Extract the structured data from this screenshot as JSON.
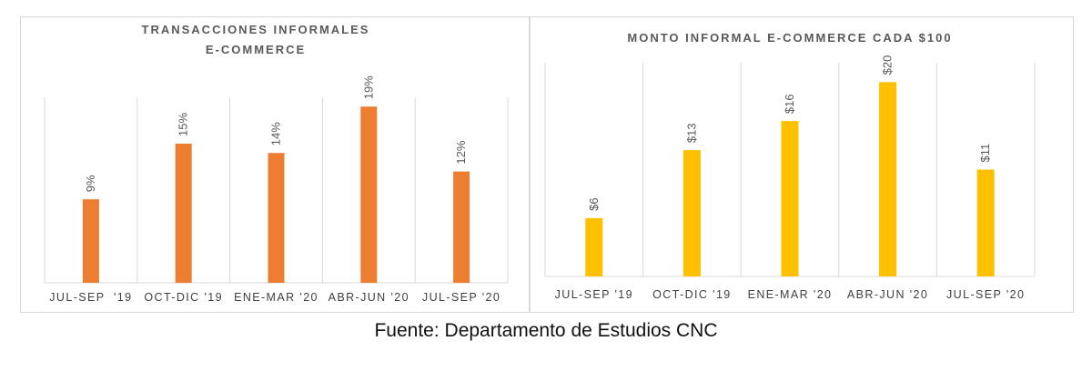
{
  "chart_data": [
    {
      "type": "bar",
      "title_lines": [
        "TRANSACCIONES  INFORMALES",
        "E-COMMERCE"
      ],
      "categories": [
        "JUL-SEP  '19",
        "OCT-DIC '19",
        "ENE-MAR '20",
        "ABR-JUN '20",
        "JUL-SEP '20"
      ],
      "values": [
        9,
        15,
        14,
        19,
        12
      ],
      "labels": [
        "9%",
        "15%",
        "14%",
        "19%",
        "12%"
      ],
      "ylim": [
        0,
        20
      ],
      "grid": "vertical separators",
      "color": "#ED7D31"
    },
    {
      "type": "bar",
      "title_lines": [
        "MONTO INFORMAL E-COMMERCE CADA $100"
      ],
      "categories": [
        "JUL-SEP '19",
        "OCT-DIC '19",
        "ENE-MAR '20",
        "ABR-JUN '20",
        "JUL-SEP '20"
      ],
      "values": [
        6,
        13,
        16,
        20,
        11
      ],
      "labels": [
        "$6",
        "$13",
        "$16",
        "$20",
        "$11"
      ],
      "ylim": [
        0,
        22
      ],
      "grid": "vertical separators",
      "color": "#FFC000"
    }
  ],
  "footer": "Fuente: Departamento de Estudios CNC"
}
